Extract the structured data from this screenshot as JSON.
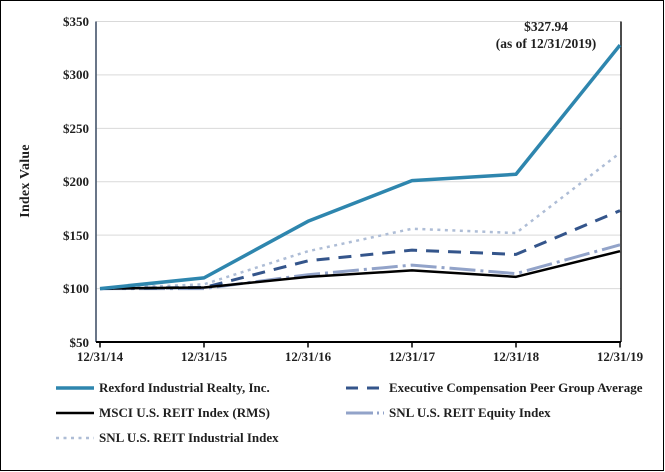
{
  "figure": {
    "background": "#FFFFFF",
    "border_color": "#000000"
  },
  "colors": {
    "gridline": "#D9D9D9",
    "y_axis_line": "#44546A",
    "x_axis_line": "#000000",
    "right_border": "#000000",
    "text": "#1F1F1F"
  },
  "chart_data": {
    "type": "line",
    "title": "",
    "xlabel": "",
    "ylabel": "Index Value",
    "ylim": [
      50,
      350
    ],
    "grid": true,
    "legend_position": "bottom",
    "yticks": [
      50,
      100,
      150,
      200,
      250,
      300,
      350
    ],
    "ytick_labels": [
      "$50",
      "$100",
      "$150",
      "$200",
      "$250",
      "$300",
      "$350"
    ],
    "x_categories": [
      "12/31/14",
      "12/31/15",
      "12/31/16",
      "12/31/17",
      "12/31/18",
      "12/31/19"
    ],
    "annotation": {
      "line1": "$327.94",
      "line2": "(as of 12/31/2019)"
    },
    "series": [
      {
        "name": "Rexford Industrial Realty, Inc.",
        "values": [
          100,
          110,
          163,
          201,
          207,
          327.94
        ],
        "color": "#2E86AE",
        "style": "solid",
        "width": 3.5,
        "legend_row": 0,
        "legend_col": 0
      },
      {
        "name": "Executive Compensation Peer Group Average",
        "values": [
          100,
          101,
          126,
          136,
          132,
          173
        ],
        "color": "#34558B",
        "style": "dashed",
        "width": 3,
        "legend_row": 0,
        "legend_col": 1
      },
      {
        "name": "MSCI U.S. REIT Index (RMS)",
        "values": [
          100,
          101,
          111,
          117,
          111,
          135
        ],
        "color": "#000000",
        "style": "solid",
        "width": 2.5,
        "legend_row": 1,
        "legend_col": 0
      },
      {
        "name": "SNL U.S. REIT Equity Index",
        "values": [
          100,
          100,
          113,
          122,
          114,
          141
        ],
        "color": "#92A3C9",
        "style": "dashdot",
        "width": 3,
        "legend_row": 1,
        "legend_col": 1
      },
      {
        "name": "SNL U.S. REIT Industrial Index",
        "values": [
          100,
          104,
          135,
          156,
          152,
          227
        ],
        "color": "#AEBDD6",
        "style": "dotted",
        "width": 2.5,
        "legend_row": 2,
        "legend_col": 0
      }
    ]
  }
}
